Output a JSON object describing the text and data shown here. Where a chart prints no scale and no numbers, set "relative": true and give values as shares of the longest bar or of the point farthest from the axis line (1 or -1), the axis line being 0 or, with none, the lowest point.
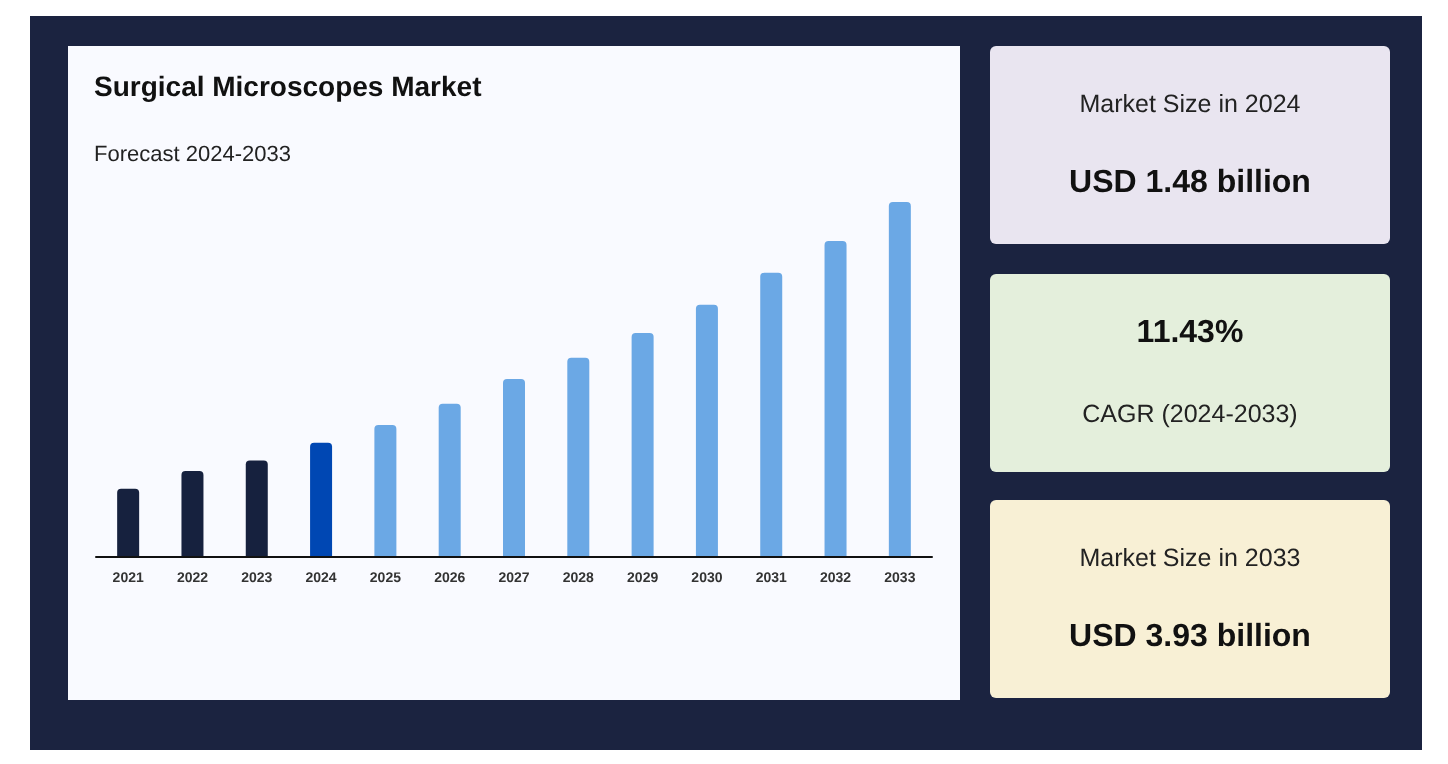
{
  "chart_data": [
    {
      "type": "bar",
      "title": "Surgical Microscopes Market",
      "subtitle": "Forecast 2024-2033",
      "relative": true,
      "categories": [
        "2021",
        "2022",
        "2023",
        "2024",
        "2025",
        "2026",
        "2027",
        "2028",
        "2029",
        "2030",
        "2031",
        "2032",
        "2033"
      ],
      "values": [
        0.19,
        0.24,
        0.27,
        0.32,
        0.37,
        0.43,
        0.5,
        0.56,
        0.63,
        0.71,
        0.8,
        0.89,
        1
      ],
      "colors": [
        "#16213e",
        "#16213e",
        "#16213e",
        "#0047b3",
        "#6ba8e5",
        "#6ba8e5",
        "#6ba8e5",
        "#6ba8e5",
        "#6ba8e5",
        "#6ba8e5",
        "#6ba8e5",
        "#6ba8e5",
        "#6ba8e5"
      ],
      "data_labels": false
    },
    {
      "type": "other",
      "title": "USD 1.48 billion",
      "annotations": [
        "Market Size in 2024"
      ]
    },
    {
      "type": "other",
      "title": "11.43%",
      "annotations": [
        "CAGR (2024-2033)"
      ]
    },
    {
      "type": "other",
      "title": "USD 3.93 billion",
      "annotations": [
        "Market Size in 2033"
      ]
    }
  ]
}
